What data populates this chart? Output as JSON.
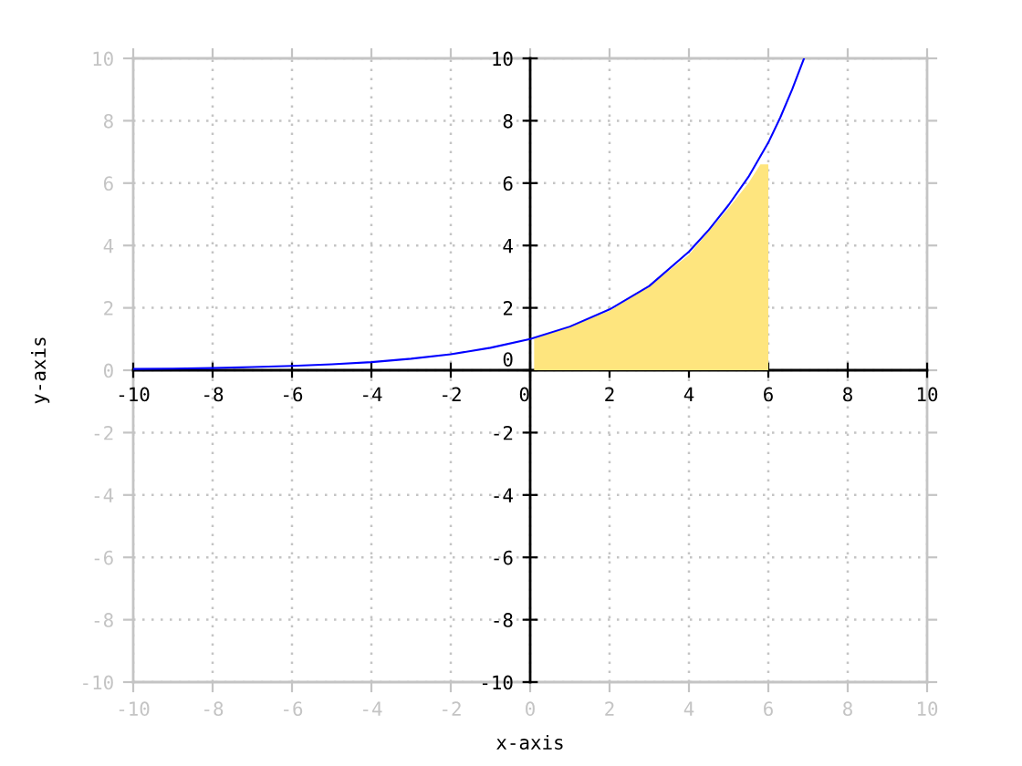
{
  "chart_data": {
    "type": "line",
    "xlabel": "x-axis",
    "ylabel": "y-axis",
    "xlim": [
      -10,
      10
    ],
    "ylim": [
      -10,
      10
    ],
    "xticks": [
      -10,
      -8,
      -6,
      -4,
      -2,
      0,
      2,
      4,
      6,
      8,
      10
    ],
    "yticks": [
      -10,
      -8,
      -6,
      -4,
      -2,
      0,
      2,
      4,
      6,
      8,
      10
    ],
    "x2lim": [
      -10,
      10
    ],
    "x2ticks": [
      -10,
      -8,
      -6,
      -4,
      -2,
      0,
      2,
      4,
      6,
      8,
      10
    ],
    "y2lim": [
      -10,
      10
    ],
    "y2ticks": [
      -10,
      -8,
      -6,
      -4,
      -2,
      0,
      2,
      4,
      6,
      8,
      10
    ],
    "grid": true,
    "series": [
      {
        "type": "area",
        "color": "#fee57e",
        "x": [
          0.1,
          1,
          2,
          3,
          4,
          5,
          5.5,
          5.8,
          6.0
        ],
        "values": [
          1.0,
          1.4,
          1.9,
          2.7,
          3.7,
          5.2,
          6.0,
          6.6,
          6.6
        ]
      },
      {
        "color": "#0000ff",
        "x": [
          -10,
          -9,
          -8,
          -7,
          -6,
          -5,
          -4,
          -3,
          -2,
          -1,
          0,
          1,
          2,
          3,
          4,
          4.5,
          5,
          5.5,
          6,
          6.3,
          6.6,
          6.9
        ],
        "values": [
          0.04,
          0.05,
          0.07,
          0.1,
          0.14,
          0.19,
          0.26,
          0.37,
          0.51,
          0.72,
          1.0,
          1.4,
          1.95,
          2.7,
          3.8,
          4.5,
          5.3,
          6.2,
          7.3,
          8.1,
          9.0,
          10.0
        ]
      }
    ]
  }
}
